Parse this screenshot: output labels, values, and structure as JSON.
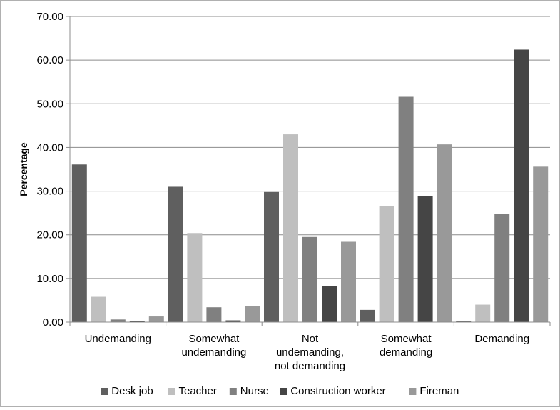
{
  "chart_data": {
    "type": "bar",
    "title": "",
    "xlabel": "",
    "ylabel": "Percentage",
    "ylim": [
      0,
      70
    ],
    "y_ticks": [
      "0.00",
      "10.00",
      "20.00",
      "30.00",
      "40.00",
      "50.00",
      "60.00",
      "70.00"
    ],
    "grid": true,
    "legend_position": "bottom",
    "categories": [
      [
        "Undemanding"
      ],
      [
        "Somewhat",
        "undemanding"
      ],
      [
        "Not",
        "undemanding,",
        "not demanding"
      ],
      [
        "Somewhat",
        "demanding"
      ],
      [
        "Demanding"
      ]
    ],
    "series": [
      {
        "name": "Desk job",
        "color": "#5f5f5f",
        "values": [
          36.1,
          31.0,
          29.8,
          2.8,
          0.2
        ]
      },
      {
        "name": "Teacher",
        "color": "#bfbfbf",
        "values": [
          5.8,
          20.4,
          43.0,
          26.5,
          4.0
        ]
      },
      {
        "name": "Nurse",
        "color": "#808080",
        "values": [
          0.6,
          3.4,
          19.5,
          51.6,
          24.8
        ]
      },
      {
        "name": "Construction worker",
        "color": "#454545",
        "values": [
          0.2,
          0.4,
          8.2,
          28.8,
          62.4
        ]
      },
      {
        "name": "Fireman",
        "color": "#999999",
        "values": [
          1.3,
          3.7,
          18.4,
          40.7,
          35.6
        ]
      }
    ]
  }
}
